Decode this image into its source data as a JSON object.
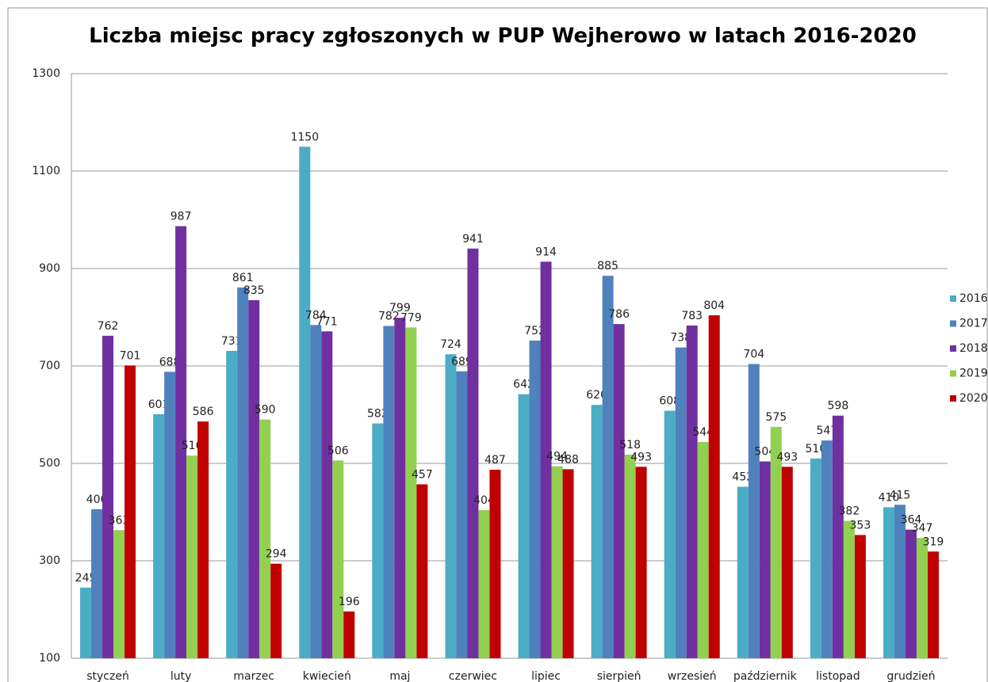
{
  "chart_data": {
    "type": "bar",
    "title": "Liczba miejsc pracy zgłoszonych w PUP Wejherowo w latach 2016-2020",
    "categories": [
      "styczeń",
      "luty",
      "marzec",
      "kwiecień",
      "maj",
      "czerwiec",
      "lipiec",
      "sierpień",
      "wrzesień",
      "październik",
      "listopad",
      "grudzień"
    ],
    "series": [
      {
        "name": "2016",
        "color": "#4bacc6",
        "values": [
          245,
          601,
          731,
          1150,
          582,
          724,
          642,
          620,
          608,
          452,
          510,
          410
        ]
      },
      {
        "name": "2017",
        "color": "#4f81bd",
        "values": [
          406,
          688,
          861,
          784,
          782,
          689,
          752,
          885,
          738,
          704,
          547,
          415
        ]
      },
      {
        "name": "2018",
        "color": "#7030a0",
        "values": [
          762,
          987,
          835,
          771,
          799,
          941,
          914,
          786,
          783,
          504,
          598,
          364
        ]
      },
      {
        "name": "2019",
        "color": "#92d050",
        "values": [
          363,
          516,
          590,
          506,
          779,
          404,
          494,
          518,
          544,
          575,
          382,
          347
        ]
      },
      {
        "name": "2020",
        "color": "#c00000",
        "values": [
          701,
          586,
          294,
          196,
          457,
          487,
          488,
          493,
          804,
          493,
          353,
          319
        ]
      }
    ],
    "ylim": [
      100,
      1300
    ],
    "yticks": [
      100,
      300,
      500,
      700,
      900,
      1100,
      1300
    ],
    "grid": true,
    "legend": "right"
  }
}
